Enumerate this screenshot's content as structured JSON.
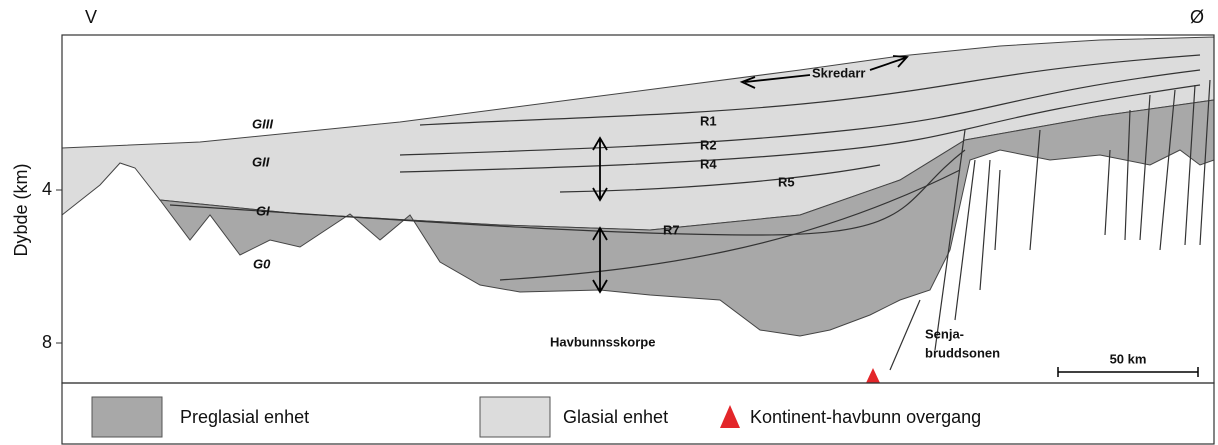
{
  "header": {
    "west": "V",
    "east": "Ø"
  },
  "axis": {
    "label": "Dybde (km)",
    "ticks": [
      4,
      8
    ]
  },
  "units": [
    "GIII",
    "GII",
    "GI",
    "G0"
  ],
  "reflectors": [
    "R1",
    "R2",
    "R4",
    "R5",
    "R7"
  ],
  "labels": {
    "slide": "Skredarr",
    "crust": "Havbunnsskorpe",
    "fault_1": "Senja-",
    "fault_2": "bruddsonen",
    "scale": "50 km"
  },
  "legend": [
    "Preglasial enhet",
    "Glasial enhet",
    "Kontinent-havbunn overgang"
  ]
}
